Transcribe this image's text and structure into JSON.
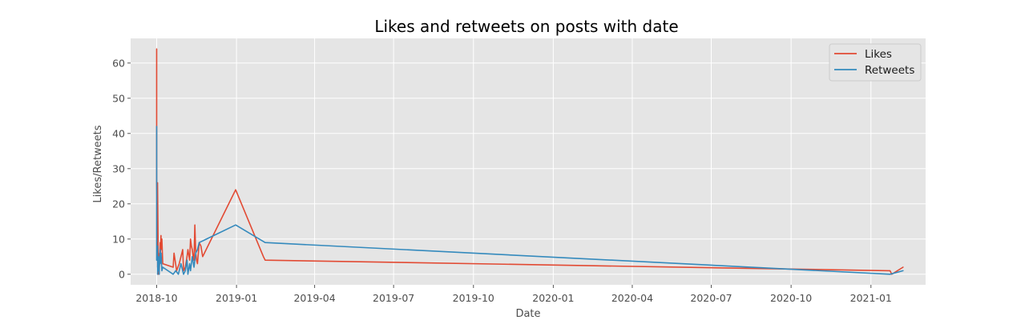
{
  "chart_data": {
    "type": "line",
    "title": "Likes and retweets on posts with date",
    "xlabel": "Date",
    "ylabel": "Likes/Retweets",
    "x_ticks": [
      "2018-10",
      "2019-01",
      "2019-04",
      "2019-07",
      "2019-10",
      "2020-01",
      "2020-04",
      "2020-07",
      "2020-10",
      "2021-01"
    ],
    "y_ticks": [
      0,
      10,
      20,
      30,
      40,
      50,
      60
    ],
    "xlim": [
      "2018-09-01",
      "2021-03-05"
    ],
    "ylim": [
      -3,
      67
    ],
    "grid": true,
    "legend_position": "top-right",
    "background_color": "#e5e5e5",
    "grid_color": "#ffffff",
    "series": [
      {
        "name": "Likes",
        "color": "#e24a33",
        "x": [
          "2018-10-01",
          "2018-10-01",
          "2018-10-01",
          "2018-10-01",
          "2018-10-02",
          "2018-10-02",
          "2018-10-02",
          "2018-10-03",
          "2018-10-03",
          "2018-10-04",
          "2018-10-04",
          "2018-10-05",
          "2018-10-05",
          "2018-10-06",
          "2018-10-06",
          "2018-10-07",
          "2018-10-08",
          "2018-10-20",
          "2018-10-21",
          "2018-10-24",
          "2018-10-27",
          "2018-10-31",
          "2018-11-01",
          "2018-11-03",
          "2018-11-05",
          "2018-11-06",
          "2018-11-08",
          "2018-11-09",
          "2018-11-10",
          "2018-11-11",
          "2018-11-12",
          "2018-11-13",
          "2018-11-14",
          "2018-11-15",
          "2018-11-16",
          "2018-11-17",
          "2018-11-19",
          "2018-11-21",
          "2018-11-23",
          "2018-12-31",
          "2019-02-01",
          "2019-02-03",
          "2021-01-23",
          "2021-01-25",
          "2021-02-07"
        ],
        "y": [
          57,
          64,
          60,
          26,
          12,
          2,
          26,
          0,
          6,
          3,
          1,
          9,
          4,
          11,
          7,
          10,
          3,
          2,
          6,
          1,
          3,
          7,
          1,
          2,
          5,
          7,
          4,
          10,
          8,
          7,
          5,
          4,
          14,
          6,
          4,
          3,
          9,
          8,
          5,
          24,
          5,
          4,
          1,
          0,
          2
        ]
      },
      {
        "name": "Retweets",
        "color": "#348abd",
        "x": [
          "2018-10-01",
          "2018-10-01",
          "2018-10-01",
          "2018-10-01",
          "2018-10-02",
          "2018-10-02",
          "2018-10-02",
          "2018-10-03",
          "2018-10-03",
          "2018-10-04",
          "2018-10-04",
          "2018-10-05",
          "2018-10-05",
          "2018-10-06",
          "2018-10-07",
          "2018-10-08",
          "2018-10-20",
          "2018-10-23",
          "2018-10-26",
          "2018-10-29",
          "2018-10-30",
          "2018-11-01",
          "2018-11-03",
          "2018-11-05",
          "2018-11-06",
          "2018-11-08",
          "2018-11-09",
          "2018-11-11",
          "2018-11-13",
          "2018-11-15",
          "2018-11-17",
          "2018-11-19",
          "2018-12-31",
          "2019-02-03",
          "2021-01-23",
          "2021-02-07"
        ],
        "y": [
          42,
          30,
          38,
          4,
          8,
          0,
          3,
          1,
          5,
          0,
          2,
          7,
          3,
          6,
          1,
          2,
          0,
          1,
          0,
          3,
          2,
          0,
          1,
          4,
          0,
          3,
          1,
          5,
          2,
          6,
          7,
          9,
          14,
          9,
          0,
          1
        ]
      }
    ]
  }
}
